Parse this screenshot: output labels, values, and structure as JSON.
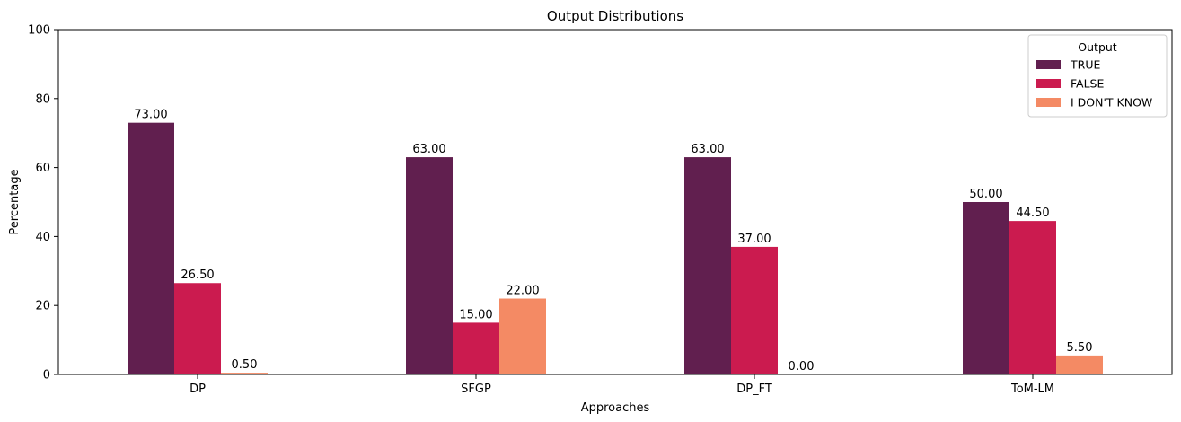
{
  "chart_data": {
    "type": "bar",
    "title": "Output Distributions",
    "xlabel": "Approaches",
    "ylabel": "Percentage",
    "ylim": [
      0,
      100
    ],
    "yticks": [
      0,
      20,
      40,
      60,
      80,
      100
    ],
    "categories": [
      "DP",
      "SFGP",
      "DP_FT",
      "ToM-LM"
    ],
    "series": [
      {
        "name": "TRUE",
        "color": "#611f4f",
        "values": [
          73.0,
          63.0,
          63.0,
          50.0
        ],
        "labels": [
          "73.00",
          "63.00",
          "63.00",
          "50.00"
        ]
      },
      {
        "name": "FALSE",
        "color": "#cb1b4f",
        "values": [
          26.5,
          15.0,
          37.0,
          44.5
        ],
        "labels": [
          "26.50",
          "15.00",
          "37.00",
          "44.50"
        ]
      },
      {
        "name": "I DON'T KNOW",
        "color": "#f48a64",
        "values": [
          0.5,
          22.0,
          0.0,
          5.5
        ],
        "labels": [
          "0.50",
          "22.00",
          "0.00",
          "5.50"
        ]
      }
    ],
    "legend": {
      "title": "Output",
      "position": "top-right"
    },
    "grid": false
  }
}
